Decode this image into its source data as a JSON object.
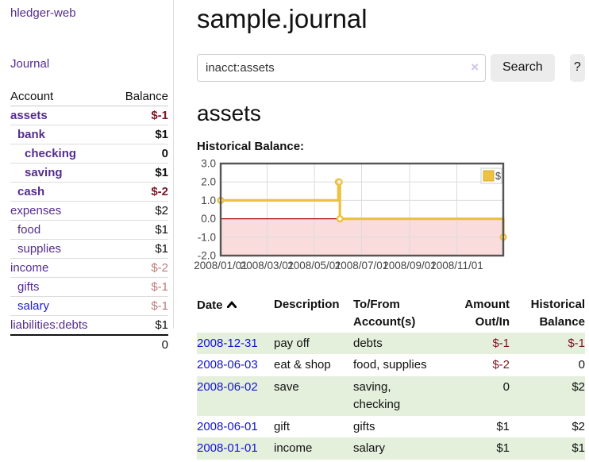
{
  "sidebar": {
    "brand": "hledger-web",
    "nav": {
      "journal": "Journal"
    },
    "accounts_table": {
      "headers": {
        "account": "Account",
        "balance": "Balance"
      },
      "rows": [
        {
          "name": "assets",
          "indent": 1,
          "bold": true,
          "name_color": "purple",
          "balance": "$-1",
          "balance_color": "dark-red"
        },
        {
          "name": "bank",
          "indent": 2,
          "bold": true,
          "name_color": "purple",
          "balance": "$1",
          "balance_color": "default"
        },
        {
          "name": "checking",
          "indent": 3,
          "bold": true,
          "name_color": "purple",
          "balance": "0",
          "balance_color": "default"
        },
        {
          "name": "saving",
          "indent": 3,
          "bold": true,
          "name_color": "purple",
          "balance": "$1",
          "balance_color": "default"
        },
        {
          "name": "cash",
          "indent": 2,
          "bold": true,
          "name_color": "purple",
          "balance": "$-2",
          "balance_color": "dark-red"
        },
        {
          "name": "expenses",
          "indent": 1,
          "bold": false,
          "name_color": "purple",
          "balance": "$2",
          "balance_color": "default"
        },
        {
          "name": "food",
          "indent": 2,
          "bold": false,
          "name_color": "purple",
          "balance": "$1",
          "balance_color": "default"
        },
        {
          "name": "supplies",
          "indent": 2,
          "bold": false,
          "name_color": "purple",
          "balance": "$1",
          "balance_color": "default"
        },
        {
          "name": "income",
          "indent": 1,
          "bold": false,
          "name_color": "purple",
          "balance": "$-2",
          "balance_color": "rose"
        },
        {
          "name": "gifts",
          "indent": 2,
          "bold": false,
          "name_color": "purple",
          "balance": "$-1",
          "balance_color": "rose"
        },
        {
          "name": "salary",
          "indent": 2,
          "bold": false,
          "name_color": "blue",
          "balance": "$-1",
          "balance_color": "rose"
        },
        {
          "name": "liabilities:debts",
          "indent": 1,
          "bold": false,
          "name_color": "purple",
          "balance": "$1",
          "balance_color": "default"
        }
      ],
      "total": "0"
    }
  },
  "main": {
    "title": "sample.journal",
    "search": {
      "value": "inacct:assets",
      "clear_icon": "×",
      "button_label": "Search",
      "help_label": "?"
    },
    "account_heading": "assets",
    "chart_label": "Historical Balance:",
    "register_table": {
      "headers": {
        "date": "Date",
        "description": "Description",
        "accounts_line1": "To/From",
        "accounts_line2": "Account(s)",
        "amount_line1": "Amount",
        "amount_line2": "Out/In",
        "balance_line1": "Historical",
        "balance_line2": "Balance"
      },
      "sort": {
        "column": "date",
        "direction": "ascending"
      },
      "rows": [
        {
          "date": "2008-12-31",
          "description": "pay off",
          "accounts": "debts",
          "wrap": false,
          "amount": "$-1",
          "amount_negative": true,
          "balance": "$-1",
          "balance_negative": true,
          "shaded": true
        },
        {
          "date": "2008-06-03",
          "description": "eat & shop",
          "accounts": "food, supplies",
          "wrap": false,
          "amount": "$-2",
          "amount_negative": true,
          "balance": "0",
          "balance_negative": false,
          "shaded": false
        },
        {
          "date": "2008-06-02",
          "description": "save",
          "accounts": "saving, checking",
          "wrap": true,
          "amount": "0",
          "amount_negative": false,
          "balance": "$2",
          "balance_negative": false,
          "shaded": true
        },
        {
          "date": "2008-06-01",
          "description": "gift",
          "accounts": "gifts",
          "wrap": false,
          "amount": "$1",
          "amount_negative": false,
          "balance": "$2",
          "balance_negative": false,
          "shaded": false
        },
        {
          "date": "2008-01-01",
          "description": "income",
          "accounts": "salary",
          "wrap": false,
          "amount": "$1",
          "amount_negative": false,
          "balance": "$1",
          "balance_negative": false,
          "shaded": true
        }
      ]
    }
  },
  "chart_data": {
    "type": "line",
    "title": "Historical Balance:",
    "step": true,
    "series": [
      {
        "name": "$",
        "color": "#edc240",
        "x": [
          "2008-01-01",
          "2008-06-01",
          "2008-06-02",
          "2008-06-03",
          "2008-12-31"
        ],
        "y": [
          1,
          2,
          2,
          0,
          -1
        ]
      }
    ],
    "x_range": [
      "2008-01-01",
      "2008-12-31"
    ],
    "ylim": [
      -2,
      3
    ],
    "yticks": [
      "3.0",
      "2.0",
      "1.0",
      "0.0",
      "-1.0",
      "-2.0"
    ],
    "ytick_values": [
      3,
      2,
      1,
      0,
      -1,
      -2
    ],
    "xticks": [
      "2008/01/01",
      "2008/03/01",
      "2008/05/01",
      "2008/07/01",
      "2008/09/01",
      "2008/11/01"
    ],
    "xtick_days": [
      0,
      60,
      121,
      182,
      244,
      305
    ],
    "grid": true,
    "legend": {
      "label": "$",
      "position": "top-right"
    },
    "negative_region_color": "#fadcdc",
    "zero_line_color": "#a80000",
    "grid_color": "#dcdcdc",
    "border_color": "#545454",
    "tick_label_color": "#444444"
  },
  "colors": {
    "link_purple": "#552d8f",
    "link_blue": "#1b1bd6",
    "date_blue": "#1414d4",
    "negative_dark_red": "#7d1424",
    "negative_rose": "#bd7b7b",
    "row_green": "#e4efdc",
    "chart_yellow": "#edc240",
    "button_gray": "#ececec"
  }
}
